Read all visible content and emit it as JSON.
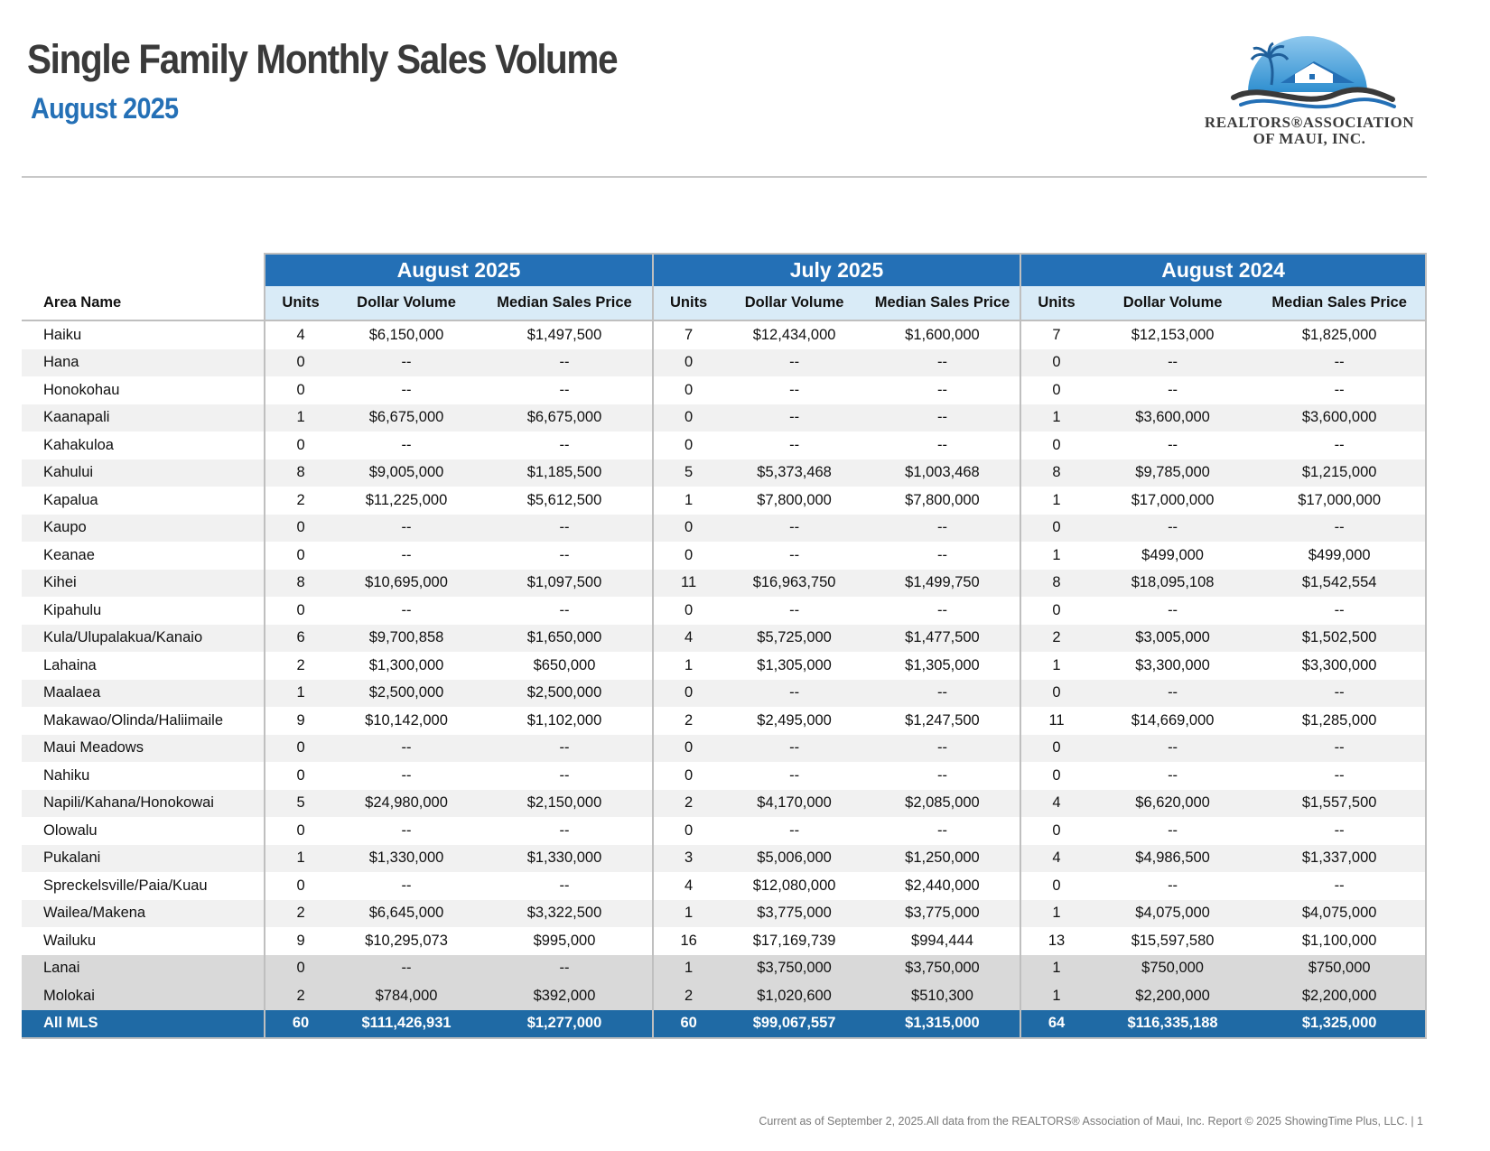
{
  "header": {
    "title": "Single Family Monthly Sales Volume",
    "subtitle": "August 2025"
  },
  "logo": {
    "line1": "REALTORS®ASSOCIATION",
    "line2": "OF MAUI, INC.",
    "colors": {
      "sky": "#2f8fd0",
      "roof": "#2470b6",
      "wave": "#3a3a3a",
      "palm": "#1f5f9a"
    }
  },
  "table": {
    "area_header": "Area Name",
    "periods": [
      "August 2025",
      "July 2025",
      "August 2024"
    ],
    "col_headers": [
      "Units",
      "Dollar Volume",
      "Median Sales Price"
    ],
    "rows": [
      {
        "area": "Haiku",
        "cells": [
          "4",
          "$6,150,000",
          "$1,497,500",
          "7",
          "$12,434,000",
          "$1,600,000",
          "7",
          "$12,153,000",
          "$1,825,000"
        ]
      },
      {
        "area": "Hana",
        "cells": [
          "0",
          "--",
          "--",
          "0",
          "--",
          "--",
          "0",
          "--",
          "--"
        ]
      },
      {
        "area": "Honokohau",
        "cells": [
          "0",
          "--",
          "--",
          "0",
          "--",
          "--",
          "0",
          "--",
          "--"
        ]
      },
      {
        "area": "Kaanapali",
        "cells": [
          "1",
          "$6,675,000",
          "$6,675,000",
          "0",
          "--",
          "--",
          "1",
          "$3,600,000",
          "$3,600,000"
        ]
      },
      {
        "area": "Kahakuloa",
        "cells": [
          "0",
          "--",
          "--",
          "0",
          "--",
          "--",
          "0",
          "--",
          "--"
        ]
      },
      {
        "area": "Kahului",
        "cells": [
          "8",
          "$9,005,000",
          "$1,185,500",
          "5",
          "$5,373,468",
          "$1,003,468",
          "8",
          "$9,785,000",
          "$1,215,000"
        ]
      },
      {
        "area": "Kapalua",
        "cells": [
          "2",
          "$11,225,000",
          "$5,612,500",
          "1",
          "$7,800,000",
          "$7,800,000",
          "1",
          "$17,000,000",
          "$17,000,000"
        ]
      },
      {
        "area": "Kaupo",
        "cells": [
          "0",
          "--",
          "--",
          "0",
          "--",
          "--",
          "0",
          "--",
          "--"
        ]
      },
      {
        "area": "Keanae",
        "cells": [
          "0",
          "--",
          "--",
          "0",
          "--",
          "--",
          "1",
          "$499,000",
          "$499,000"
        ]
      },
      {
        "area": "Kihei",
        "cells": [
          "8",
          "$10,695,000",
          "$1,097,500",
          "11",
          "$16,963,750",
          "$1,499,750",
          "8",
          "$18,095,108",
          "$1,542,554"
        ]
      },
      {
        "area": "Kipahulu",
        "cells": [
          "0",
          "--",
          "--",
          "0",
          "--",
          "--",
          "0",
          "--",
          "--"
        ]
      },
      {
        "area": "Kula/Ulupalakua/Kanaio",
        "cells": [
          "6",
          "$9,700,858",
          "$1,650,000",
          "4",
          "$5,725,000",
          "$1,477,500",
          "2",
          "$3,005,000",
          "$1,502,500"
        ]
      },
      {
        "area": "Lahaina",
        "cells": [
          "2",
          "$1,300,000",
          "$650,000",
          "1",
          "$1,305,000",
          "$1,305,000",
          "1",
          "$3,300,000",
          "$3,300,000"
        ]
      },
      {
        "area": "Maalaea",
        "cells": [
          "1",
          "$2,500,000",
          "$2,500,000",
          "0",
          "--",
          "--",
          "0",
          "--",
          "--"
        ]
      },
      {
        "area": "Makawao/Olinda/Haliimaile",
        "cells": [
          "9",
          "$10,142,000",
          "$1,102,000",
          "2",
          "$2,495,000",
          "$1,247,500",
          "11",
          "$14,669,000",
          "$1,285,000"
        ]
      },
      {
        "area": "Maui Meadows",
        "cells": [
          "0",
          "--",
          "--",
          "0",
          "--",
          "--",
          "0",
          "--",
          "--"
        ]
      },
      {
        "area": "Nahiku",
        "cells": [
          "0",
          "--",
          "--",
          "0",
          "--",
          "--",
          "0",
          "--",
          "--"
        ]
      },
      {
        "area": "Napili/Kahana/Honokowai",
        "cells": [
          "5",
          "$24,980,000",
          "$2,150,000",
          "2",
          "$4,170,000",
          "$2,085,000",
          "4",
          "$6,620,000",
          "$1,557,500"
        ]
      },
      {
        "area": "Olowalu",
        "cells": [
          "0",
          "--",
          "--",
          "0",
          "--",
          "--",
          "0",
          "--",
          "--"
        ]
      },
      {
        "area": "Pukalani",
        "cells": [
          "1",
          "$1,330,000",
          "$1,330,000",
          "3",
          "$5,006,000",
          "$1,250,000",
          "4",
          "$4,986,500",
          "$1,337,000"
        ]
      },
      {
        "area": "Spreckelsville/Paia/Kuau",
        "cells": [
          "0",
          "--",
          "--",
          "4",
          "$12,080,000",
          "$2,440,000",
          "0",
          "--",
          "--"
        ]
      },
      {
        "area": "Wailea/Makena",
        "cells": [
          "2",
          "$6,645,000",
          "$3,322,500",
          "1",
          "$3,775,000",
          "$3,775,000",
          "1",
          "$4,075,000",
          "$4,075,000"
        ]
      },
      {
        "area": "Wailuku",
        "cells": [
          "9",
          "$10,295,073",
          "$995,000",
          "16",
          "$17,169,739",
          "$994,444",
          "13",
          "$15,597,580",
          "$1,100,000"
        ]
      }
    ],
    "island_rows": [
      {
        "area": "Lanai",
        "cells": [
          "0",
          "--",
          "--",
          "1",
          "$3,750,000",
          "$3,750,000",
          "1",
          "$750,000",
          "$750,000"
        ]
      },
      {
        "area": "Molokai",
        "cells": [
          "2",
          "$784,000",
          "$392,000",
          "2",
          "$1,020,600",
          "$510,300",
          "1",
          "$2,200,000",
          "$2,200,000"
        ]
      }
    ],
    "total_row": {
      "area": "All MLS",
      "cells": [
        "60",
        "$111,426,931",
        "$1,277,000",
        "60",
        "$99,067,557",
        "$1,315,000",
        "64",
        "$116,335,188",
        "$1,325,000"
      ]
    }
  },
  "footer": {
    "text": "Current as of September 2, 2025.All data from the REALTORS® Association of Maui, Inc. Report © 2025 ShowingTime Plus, LLC.  |  1"
  }
}
